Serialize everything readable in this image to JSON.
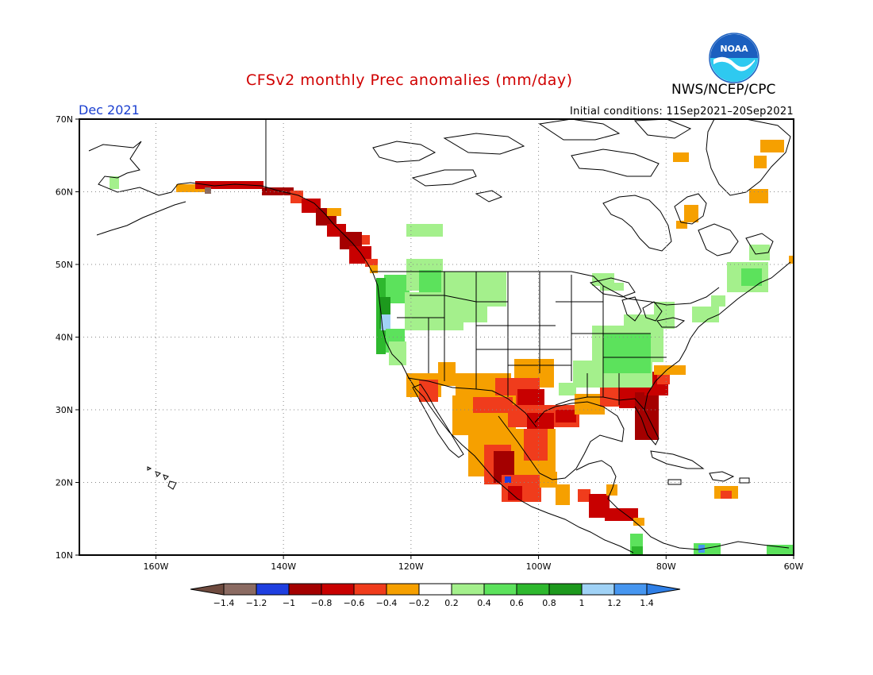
{
  "title": "CFSv2 monthly Prec anomalies (mm/day)",
  "agency": "NWS/NCEP/CPC",
  "logo_text": "NOAA",
  "month": "Dec 2021",
  "initial_conditions": "Initial conditions: 11Sep2021–20Sep2021",
  "map": {
    "lon_range": [
      -172,
      -60
    ],
    "lat_range": [
      10,
      70
    ],
    "lat_labels": [
      "10N",
      "20N",
      "30N",
      "40N",
      "50N",
      "60N",
      "70N"
    ],
    "lon_labels": [
      "160W",
      "140W",
      "120W",
      "100W",
      "80W",
      "60W"
    ]
  },
  "legend": {
    "colors": [
      "#8b6b62",
      "#1f3fe0",
      "#a40000",
      "#c80000",
      "#f03c1c",
      "#f6a000",
      "#ffffff",
      "#a4f08c",
      "#5ce25c",
      "#2eb82e",
      "#1d991d",
      "#a0d2f6",
      "#4696f0"
    ],
    "left_arrow_color": "#6e4a3e",
    "right_arrow_color": "#2f7fe6",
    "labels": [
      "−1.4",
      "−1.2",
      "−1",
      "−0.8",
      "−0.6",
      "−0.4",
      "−0.2",
      "0.2",
      "0.4",
      "0.6",
      "0.8",
      "1",
      "1.2",
      "1.4"
    ]
  },
  "colors": {
    "title": "#d00000",
    "month": "#1a3fd0",
    "noaa_blue": "#1b5fbf",
    "noaa_cyan": "#2ec9f0"
  }
}
